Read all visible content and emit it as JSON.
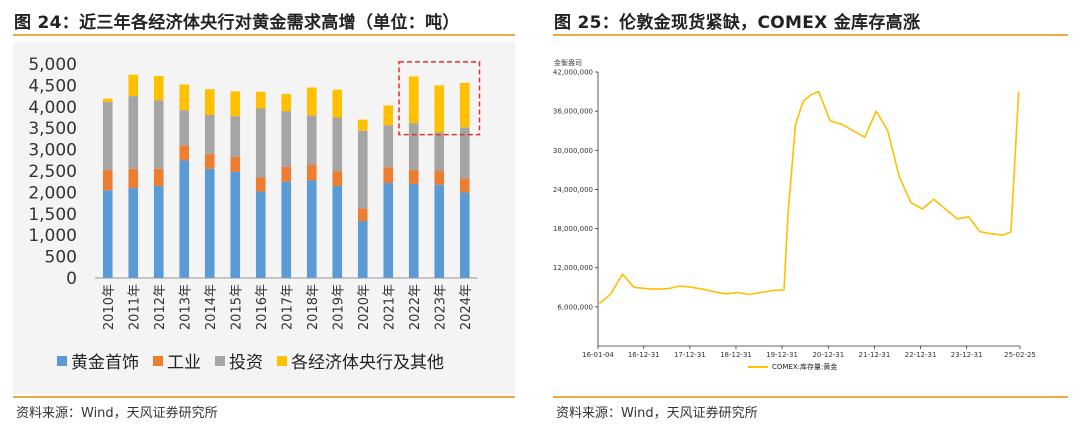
{
  "left_panel": {
    "title": "图 24：近三年各经济体央行对黄金需求高增（单位：吨）",
    "source": "资料来源：Wind，天风证券研究所"
  },
  "right_panel": {
    "title": "图 25：伦敦金现货紧缺，COMEX 金库存高涨",
    "source": "资料来源：Wind，天风证券研究所"
  },
  "colors": {
    "accent_rule": "#f0a64a",
    "jewelry": "#5b9bd5",
    "industry": "#ed7d31",
    "investment": "#a5a5a5",
    "central_banks": "#ffc000",
    "comex_line": "#ffc000",
    "highlight_box": "#e03030"
  },
  "chart_data": [
    {
      "type": "bar",
      "stacked": true,
      "title": "图 24：近三年各经济体央行对黄金需求高增（单位：吨）",
      "categories": [
        "2010年",
        "2011年",
        "2012年",
        "2013年",
        "2014年",
        "2015年",
        "2016年",
        "2017年",
        "2018年",
        "2019年",
        "2020年",
        "2021年",
        "2022年",
        "2023年",
        "2024年"
      ],
      "series": [
        {
          "name": "黄金首饰",
          "values": [
            2050,
            2100,
            2150,
            2750,
            2550,
            2480,
            2020,
            2250,
            2280,
            2150,
            1330,
            2220,
            2200,
            2180,
            2000
          ]
        },
        {
          "name": "工业",
          "values": [
            470,
            450,
            400,
            350,
            350,
            350,
            330,
            350,
            360,
            340,
            300,
            370,
            330,
            320,
            330
          ]
        },
        {
          "name": "投资",
          "values": [
            1590,
            1700,
            1600,
            820,
            910,
            950,
            1610,
            1300,
            1160,
            1260,
            1810,
            980,
            1090,
            900,
            1190
          ]
        },
        {
          "name": "各经济体央行及其他",
          "values": [
            80,
            500,
            570,
            600,
            600,
            580,
            390,
            400,
            650,
            650,
            260,
            460,
            1090,
            1100,
            1040
          ]
        }
      ],
      "yticks": [
        "0",
        "500",
        "1,000",
        "1,500",
        "2,000",
        "2,500",
        "3,000",
        "3,500",
        "4,000",
        "4,500",
        "5,000"
      ],
      "ylim": [
        0,
        5000
      ],
      "legend_position": "bottom",
      "annotation": "dashed red box around 2022年–2024年"
    },
    {
      "type": "line",
      "title": "图 25：伦敦金现货紧缺，COMEX 金库存高涨",
      "ylabel": "金衡盎司",
      "ylim": [
        0,
        42000000
      ],
      "yticks": [
        "6,000,000",
        "12,000,000",
        "18,000,000",
        "24,000,000",
        "30,000,000",
        "36,000,000",
        "42,000,000"
      ],
      "xticks": [
        "16-01-04",
        "16-12-31",
        "17-12-31",
        "18-12-31",
        "19-12-31",
        "20-12-31",
        "21-12-31",
        "22-12-31",
        "23-12-31",
        "25-02-25"
      ],
      "series": [
        {
          "name": "COMEX:库存量:黄金",
          "x": [
            "2016-01",
            "2016-04",
            "2016-07",
            "2016-10",
            "2017-01",
            "2017-04",
            "2017-07",
            "2017-10",
            "2018-01",
            "2018-04",
            "2018-07",
            "2018-10",
            "2019-01",
            "2019-04",
            "2019-07",
            "2019-10",
            "2020-01",
            "2020-02",
            "2020-04",
            "2020-06",
            "2020-08",
            "2020-10",
            "2021-01",
            "2021-04",
            "2021-07",
            "2021-10",
            "2022-01",
            "2022-04",
            "2022-07",
            "2022-10",
            "2023-01",
            "2023-04",
            "2023-07",
            "2023-10",
            "2024-01",
            "2024-04",
            "2024-07",
            "2024-10",
            "2024-12",
            "2025-02"
          ],
          "values": [
            6500000,
            8000000,
            11000000,
            9000000,
            8800000,
            8700000,
            8800000,
            9200000,
            9000000,
            8700000,
            8300000,
            8000000,
            8200000,
            7900000,
            8200000,
            8500000,
            8600000,
            20000000,
            34000000,
            37500000,
            38500000,
            39000000,
            34500000,
            34000000,
            33000000,
            32000000,
            36000000,
            33000000,
            26000000,
            22000000,
            21000000,
            22500000,
            21000000,
            19500000,
            19800000,
            17500000,
            17200000,
            17000000,
            17500000,
            39000000
          ]
        }
      ],
      "legend_position": "bottom"
    }
  ]
}
